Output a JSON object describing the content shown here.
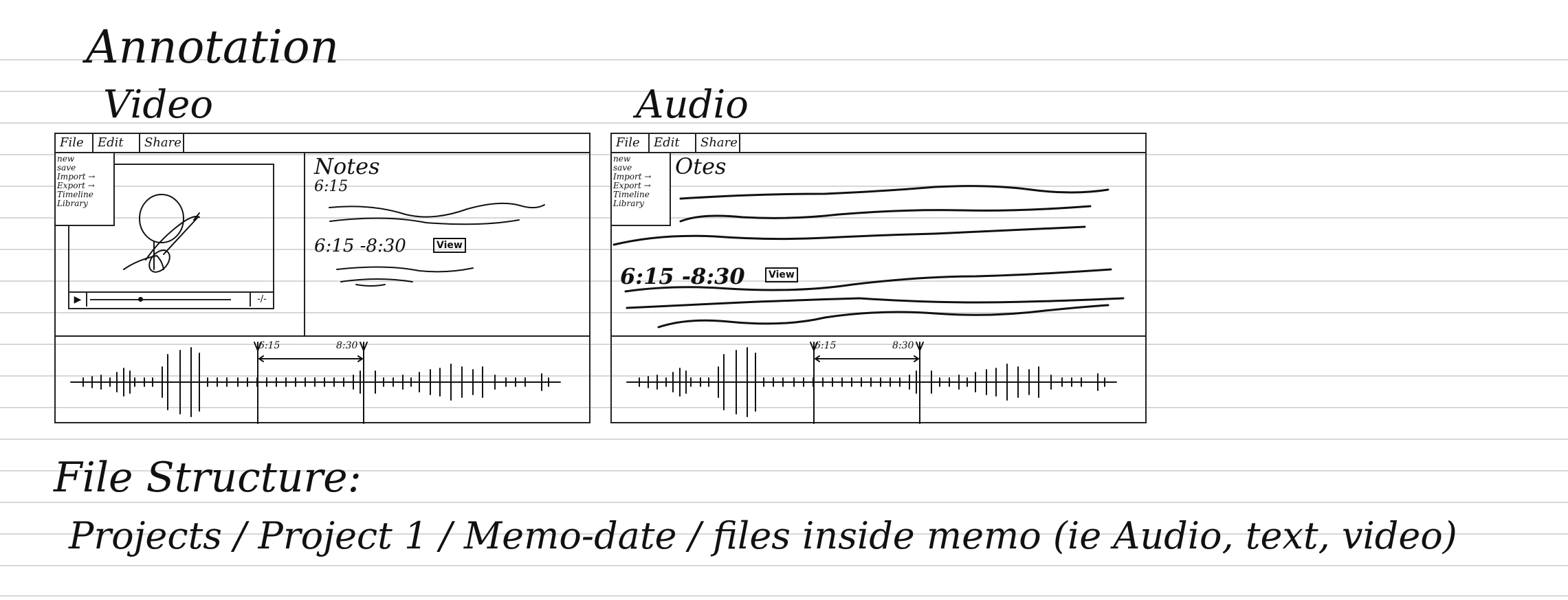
{
  "page_title": "Annotation",
  "video": {
    "heading": "Video",
    "menu": [
      "File",
      "Edit",
      "Share"
    ],
    "dropdown": [
      "new",
      "save",
      "Import →",
      "Export →",
      "Timeline",
      "Library"
    ],
    "notes_label": "Notes",
    "note1_time": "6:15",
    "note2_time": "6:15 -8:30",
    "view_label": "View",
    "play_symbol": "▶",
    "time_readout": "-/-",
    "timeline_start": "6:15",
    "timeline_end": "8:30"
  },
  "audio": {
    "heading": "Audio",
    "menu": [
      "File",
      "Edit",
      "Share"
    ],
    "dropdown": [
      "new",
      "save",
      "Import →",
      "Export →",
      "Timeline",
      "Library"
    ],
    "notes_label": "Otes",
    "note_time": "6:15 -8:30",
    "view_label": "View",
    "timeline_start": "6:15",
    "timeline_end": "8:30"
  },
  "file_structure": {
    "label": "File Structure:",
    "path": "Projects / Project 1 / Memo-date / files inside memo (ie Audio, text, video)"
  }
}
